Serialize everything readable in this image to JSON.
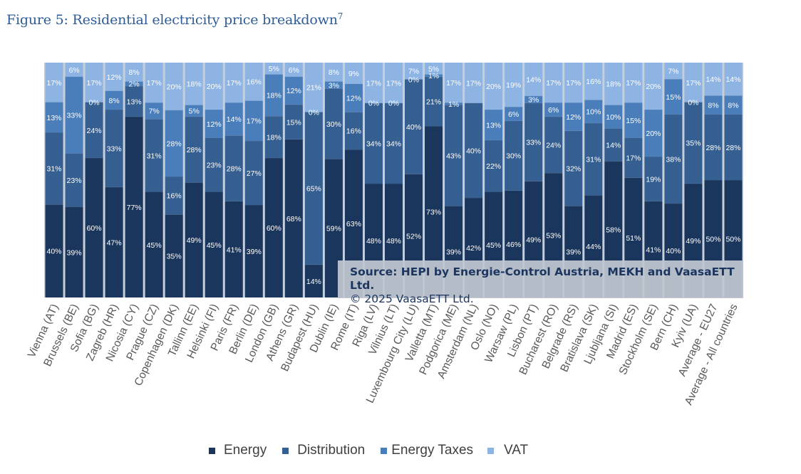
{
  "figure": {
    "title": "Figure 5: Residential electricity price breakdown",
    "footnote_marker": "7"
  },
  "source": {
    "line1": "Source: HEPI by Energie-Control Austria, MEKH and VaasaETT Ltd.",
    "line2": "© 2025 VaasaETT Ltd."
  },
  "colors": {
    "Energy": "#1b365d",
    "Distribution": "#355f91",
    "Energy Taxes": "#4a7ebb",
    "VAT": "#8eb4e3",
    "gap": "#c8ced6"
  },
  "chart_data": {
    "type": "bar",
    "stacked": true,
    "percent_stacked": true,
    "title": "Residential electricity price breakdown",
    "xlabel": "",
    "ylabel": "",
    "ylim": [
      0,
      100
    ],
    "legend_position": "bottom",
    "categories": [
      "Vienna (AT)",
      "Brussels (BE)",
      "Sofia (BG)",
      "Zagreb (HR)",
      "Nicosia (CY)",
      "Prague (CZ)",
      "Copenhagen (DK)",
      "Tallinn (EE)",
      "Helsinki (FI)",
      "Paris (FR)",
      "Berlin (DE)",
      "London (GB)",
      "Athens (GR)",
      "Budapest (HU)",
      "Dublin (IE)",
      "Rome (IT)",
      "Riga (LV)",
      "Vilnius (LT)",
      "Luxembourg City (LU)",
      "Valletta (MT)",
      "Podgorica (ME)",
      "Amsterdam (NL)",
      "Oslo (NO)",
      "Warsaw (PL)",
      "Lisbon (PT)",
      "Bucharest (RO)",
      "Belgrade (RS)",
      "Bratislava (SK)",
      "Ljubljana (SI)",
      "Madrid (ES)",
      "Stockholm (SE)",
      "Bern (CH)",
      "Kyiv (UA)",
      "Average - EU27",
      "Average - All countries"
    ],
    "series": [
      {
        "name": "Energy",
        "values": [
          40,
          39,
          60,
          47,
          77,
          45,
          35,
          49,
          45,
          41,
          39,
          60,
          68,
          14,
          59,
          63,
          48,
          48,
          52,
          73,
          39,
          42,
          45,
          46,
          49,
          53,
          39,
          44,
          58,
          51,
          41,
          40,
          49,
          50,
          50
        ]
      },
      {
        "name": "Distribution",
        "values": [
          31,
          23,
          24,
          33,
          13,
          31,
          16,
          28,
          23,
          28,
          27,
          18,
          15,
          65,
          30,
          16,
          34,
          34,
          40,
          21,
          43,
          40,
          22,
          30,
          33,
          24,
          32,
          31,
          14,
          17,
          19,
          38,
          35,
          28,
          28
        ]
      },
      {
        "name": "Energy Taxes",
        "values": [
          13,
          33,
          0,
          8,
          2,
          7,
          28,
          5,
          12,
          14,
          17,
          18,
          12,
          0,
          3,
          12,
          0,
          0,
          0,
          1,
          1,
          null,
          13,
          6,
          3,
          6,
          12,
          10,
          10,
          15,
          20,
          15,
          0,
          8,
          8
        ]
      },
      {
        "name": "VAT",
        "values": [
          17,
          6,
          17,
          12,
          8,
          17,
          20,
          18,
          20,
          17,
          16,
          5,
          6,
          21,
          8,
          9,
          17,
          17,
          7,
          5,
          17,
          17,
          20,
          19,
          14,
          17,
          17,
          16,
          18,
          17,
          20,
          7,
          17,
          14,
          14
        ]
      }
    ],
    "data_labels": true,
    "data_label_format": "{v}%"
  }
}
